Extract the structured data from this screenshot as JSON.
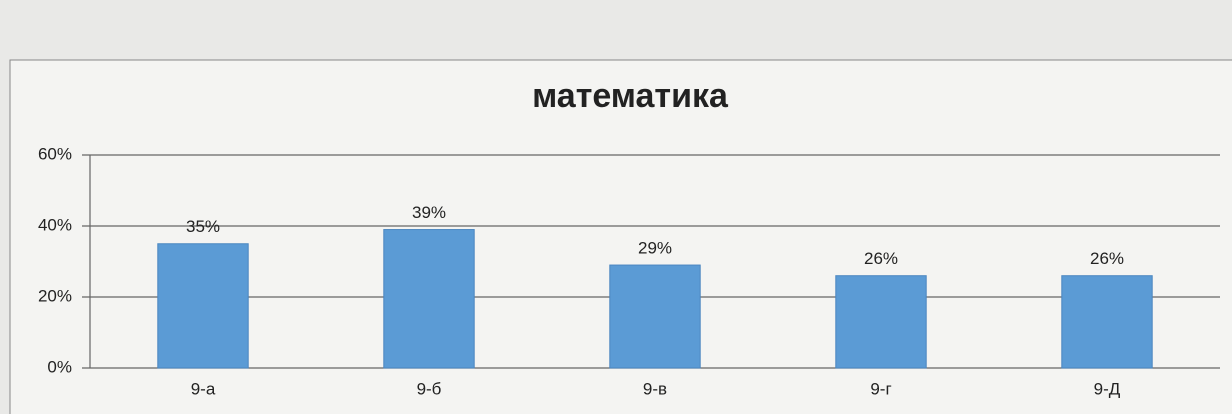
{
  "chart_data": {
    "type": "bar",
    "title": "математика",
    "categories": [
      "9-а",
      "9-б",
      "9-в",
      "9-г",
      "9-Д"
    ],
    "values": [
      35,
      39,
      29,
      26,
      26
    ],
    "value_labels": [
      "35%",
      "39%",
      "29%",
      "26%",
      "26%"
    ],
    "color": "#5b9bd5",
    "ylim": [
      0,
      60
    ],
    "yticks": [
      {
        "value": 0,
        "label": "0%"
      },
      {
        "value": 20,
        "label": "20%"
      },
      {
        "value": 40,
        "label": "40%"
      },
      {
        "value": 60,
        "label": "60%"
      }
    ],
    "grid": true
  }
}
